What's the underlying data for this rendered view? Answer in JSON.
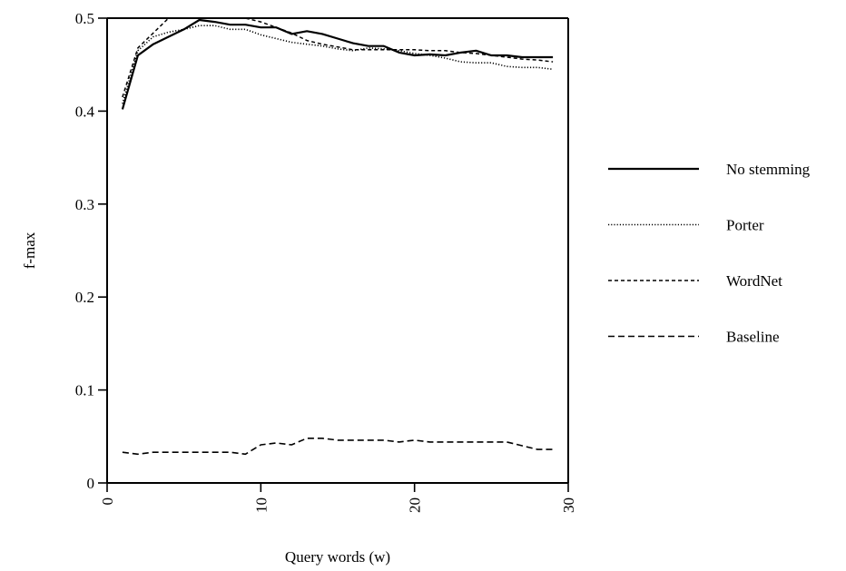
{
  "chart_data": {
    "type": "line",
    "xlabel": "Query words (w)",
    "ylabel": "f-max",
    "xlim": [
      0,
      30
    ],
    "ylim": [
      0,
      0.5
    ],
    "xticks": [
      0,
      10,
      20,
      30
    ],
    "xtick_labels": [
      "0",
      "10",
      "20",
      "30"
    ],
    "yticks": [
      0,
      0.1,
      0.2,
      0.3,
      0.4,
      0.5
    ],
    "ytick_labels": [
      "0",
      "0.1",
      "0.2",
      "0.3",
      "0.4",
      "0.5"
    ],
    "grid": false,
    "legend_position": "right",
    "series": [
      {
        "name": "No stemming",
        "style": "solid",
        "color": "#000000",
        "x": [
          1,
          2,
          3,
          4,
          5,
          6,
          7,
          8,
          9,
          10,
          11,
          12,
          13,
          14,
          15,
          16,
          17,
          18,
          19,
          20,
          21,
          22,
          23,
          24,
          25,
          26,
          27,
          28,
          29
        ],
        "y": [
          0.402,
          0.46,
          0.472,
          0.48,
          0.488,
          0.498,
          0.496,
          0.493,
          0.493,
          0.49,
          0.49,
          0.483,
          0.486,
          0.483,
          0.478,
          0.473,
          0.47,
          0.47,
          0.463,
          0.46,
          0.461,
          0.46,
          0.463,
          0.465,
          0.46,
          0.46,
          0.458,
          0.458,
          0.458
        ]
      },
      {
        "name": "Porter",
        "style": "dotted",
        "color": "#000000",
        "x": [
          1,
          2,
          3,
          4,
          5,
          6,
          7,
          8,
          9,
          10,
          11,
          12,
          13,
          14,
          15,
          16,
          17,
          18,
          19,
          20,
          21,
          22,
          23,
          24,
          25,
          26,
          27,
          28,
          29
        ],
        "y": [
          0.408,
          0.465,
          0.48,
          0.485,
          0.488,
          0.492,
          0.492,
          0.488,
          0.488,
          0.482,
          0.478,
          0.474,
          0.472,
          0.47,
          0.467,
          0.465,
          0.468,
          0.467,
          0.465,
          0.462,
          0.46,
          0.457,
          0.453,
          0.452,
          0.452,
          0.448,
          0.447,
          0.447,
          0.445
        ]
      },
      {
        "name": "WordNet",
        "style": "dashed",
        "color": "#000000",
        "x": [
          1,
          2,
          3,
          4,
          5,
          6,
          7,
          8,
          9,
          10,
          11,
          12,
          13,
          14,
          15,
          16,
          17,
          18,
          19,
          20,
          21,
          22,
          23,
          24,
          25,
          26,
          27,
          28,
          29
        ],
        "y": [
          0.415,
          0.468,
          0.484,
          0.5,
          0.5,
          0.5,
          0.5,
          0.5,
          0.5,
          0.496,
          0.49,
          0.484,
          0.476,
          0.472,
          0.469,
          0.466,
          0.466,
          0.466,
          0.466,
          0.466,
          0.465,
          0.465,
          0.463,
          0.462,
          0.46,
          0.458,
          0.456,
          0.455,
          0.453
        ]
      },
      {
        "name": "Baseline",
        "style": "longdash",
        "color": "#000000",
        "x": [
          1,
          2,
          3,
          4,
          5,
          6,
          7,
          8,
          9,
          10,
          11,
          12,
          13,
          14,
          15,
          16,
          17,
          18,
          19,
          20,
          21,
          22,
          23,
          24,
          25,
          26,
          27,
          28,
          29
        ],
        "y": [
          0.033,
          0.031,
          0.033,
          0.033,
          0.033,
          0.033,
          0.033,
          0.033,
          0.031,
          0.041,
          0.043,
          0.041,
          0.048,
          0.048,
          0.046,
          0.046,
          0.046,
          0.046,
          0.044,
          0.046,
          0.044,
          0.044,
          0.044,
          0.044,
          0.044,
          0.044,
          0.04,
          0.036,
          0.036
        ]
      }
    ]
  }
}
